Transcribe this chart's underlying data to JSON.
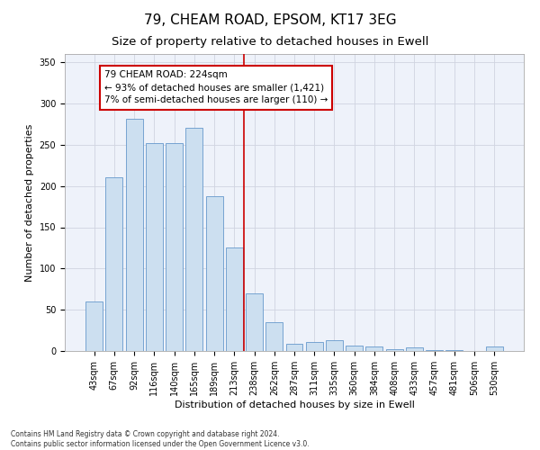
{
  "title": "79, CHEAM ROAD, EPSOM, KT17 3EG",
  "subtitle": "Size of property relative to detached houses in Ewell",
  "xlabel": "Distribution of detached houses by size in Ewell",
  "ylabel": "Number of detached properties",
  "bar_labels": [
    "43sqm",
    "67sqm",
    "92sqm",
    "116sqm",
    "140sqm",
    "165sqm",
    "189sqm",
    "213sqm",
    "238sqm",
    "262sqm",
    "287sqm",
    "311sqm",
    "335sqm",
    "360sqm",
    "384sqm",
    "408sqm",
    "433sqm",
    "457sqm",
    "481sqm",
    "506sqm",
    "530sqm"
  ],
  "bar_values": [
    60,
    210,
    282,
    252,
    252,
    271,
    188,
    126,
    70,
    35,
    9,
    11,
    13,
    7,
    5,
    2,
    4,
    1,
    1,
    0,
    5
  ],
  "bar_color": "#ccdff0",
  "bar_edge_color": "#6699cc",
  "vline_color": "#cc0000",
  "annotation_text": "79 CHEAM ROAD: 224sqm\n← 93% of detached houses are smaller (1,421)\n7% of semi-detached houses are larger (110) →",
  "annotation_box_color": "#cc0000",
  "ylim": [
    0,
    360
  ],
  "yticks": [
    0,
    50,
    100,
    150,
    200,
    250,
    300,
    350
  ],
  "footnote": "Contains HM Land Registry data © Crown copyright and database right 2024.\nContains public sector information licensed under the Open Government Licence v3.0.",
  "bg_color": "#eef2fa",
  "grid_color": "#d0d4e0",
  "title_fontsize": 11,
  "subtitle_fontsize": 9.5,
  "axis_label_fontsize": 8,
  "tick_fontsize": 7,
  "annotation_fontsize": 7.5,
  "footnote_fontsize": 5.5
}
